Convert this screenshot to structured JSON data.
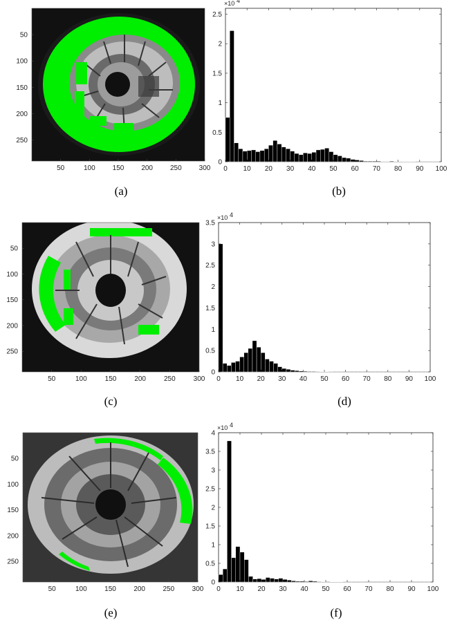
{
  "colors": {
    "highlight": "#00ff00",
    "bar": "#000000",
    "background": "#ffffff"
  },
  "panels": [
    {
      "image": {
        "caption": "(a)",
        "x_ticks": [
          "50",
          "100",
          "150",
          "200",
          "250",
          "300"
        ],
        "y_ticks": [
          "50",
          "100",
          "150",
          "200",
          "250"
        ],
        "xlim": [
          0,
          300
        ],
        "ylim": [
          0,
          290
        ],
        "highlight": "outer-ring"
      },
      "histogram": {
        "caption": "(b)",
        "multiplier": "×10",
        "multiplier_exp": "4",
        "y_ticks": [
          "0",
          "0.5",
          "1",
          "1.5",
          "2",
          "2.5"
        ],
        "x_ticks": [
          "0",
          "10",
          "20",
          "30",
          "40",
          "50",
          "60",
          "70",
          "80",
          "90",
          "100"
        ]
      }
    },
    {
      "image": {
        "caption": "(c)",
        "x_ticks": [
          "50",
          "100",
          "150",
          "200",
          "250",
          "300"
        ],
        "y_ticks": [
          "50",
          "100",
          "150",
          "200",
          "250"
        ],
        "xlim": [
          0,
          300
        ],
        "ylim": [
          0,
          290
        ],
        "highlight": "left-arc"
      },
      "histogram": {
        "caption": "(d)",
        "multiplier": "×10",
        "multiplier_exp": "4",
        "y_ticks": [
          "0",
          "0.5",
          "1",
          "1.5",
          "2",
          "2.5",
          "3",
          "3.5"
        ],
        "x_ticks": [
          "0",
          "10",
          "20",
          "30",
          "40",
          "50",
          "60",
          "70",
          "80",
          "90",
          "100"
        ]
      }
    },
    {
      "image": {
        "caption": "(e)",
        "x_ticks": [
          "50",
          "100",
          "150",
          "200",
          "250",
          "300"
        ],
        "y_ticks": [
          "50",
          "100",
          "150",
          "200",
          "250"
        ],
        "xlim": [
          0,
          300
        ],
        "ylim": [
          0,
          290
        ],
        "highlight": "right-arc"
      },
      "histogram": {
        "caption": "(f)",
        "multiplier": "×10",
        "multiplier_exp": "4",
        "y_ticks": [
          "0",
          "0.5",
          "1",
          "1.5",
          "2",
          "2.5",
          "3",
          "3.5",
          "4"
        ],
        "x_ticks": [
          "0",
          "10",
          "20",
          "30",
          "40",
          "50",
          "60",
          "70",
          "80",
          "90",
          "100"
        ]
      }
    }
  ],
  "chart_data": [
    {
      "type": "bar",
      "bin_width": 2,
      "x": [
        0,
        2,
        4,
        6,
        8,
        10,
        12,
        14,
        16,
        18,
        20,
        22,
        24,
        26,
        28,
        30,
        32,
        34,
        36,
        38,
        40,
        42,
        44,
        46,
        48,
        50,
        52,
        54,
        56,
        58,
        60,
        62,
        64,
        66,
        68,
        70,
        72,
        74,
        76,
        78,
        80,
        82,
        84,
        86,
        88,
        90,
        92,
        94,
        96,
        98
      ],
      "values": [
        0.75,
        2.22,
        0.32,
        0.22,
        0.18,
        0.19,
        0.2,
        0.17,
        0.19,
        0.22,
        0.28,
        0.36,
        0.3,
        0.25,
        0.22,
        0.18,
        0.14,
        0.12,
        0.15,
        0.14,
        0.16,
        0.2,
        0.21,
        0.23,
        0.17,
        0.12,
        0.1,
        0.07,
        0.06,
        0.04,
        0.03,
        0.02,
        0.01,
        0.01,
        0.01,
        0.01,
        0.005,
        0.005,
        0.01,
        0.005,
        0.005,
        0.003,
        0.003,
        0.003,
        0.002,
        0.002,
        0.002,
        0.002,
        0.002,
        0.002
      ],
      "xlim": [
        0,
        100
      ],
      "ylim": [
        0,
        2.6
      ],
      "y_multiplier": "×10^4"
    },
    {
      "type": "bar",
      "bin_width": 2,
      "x": [
        0,
        2,
        4,
        6,
        8,
        10,
        12,
        14,
        16,
        18,
        20,
        22,
        24,
        26,
        28,
        30,
        32,
        34,
        36,
        38,
        40,
        42,
        44,
        46,
        48,
        50,
        52,
        54,
        56,
        58,
        60,
        62,
        64,
        66,
        68,
        70,
        72,
        74,
        76,
        78,
        80,
        82,
        84,
        86,
        88,
        90,
        92,
        94,
        96,
        98
      ],
      "values": [
        3.0,
        0.2,
        0.15,
        0.22,
        0.25,
        0.35,
        0.45,
        0.55,
        0.73,
        0.58,
        0.45,
        0.3,
        0.25,
        0.2,
        0.12,
        0.08,
        0.06,
        0.04,
        0.03,
        0.02,
        0.015,
        0.01,
        0.01,
        0.008,
        0.005,
        0.004,
        0.003,
        0.002,
        0.002,
        0.002,
        0.001,
        0.001,
        0.001,
        0.001,
        0.001,
        0.001,
        0.001,
        0.001,
        0.001,
        0.001,
        0.001,
        0.001,
        0.001,
        0.001,
        0.001,
        0.001,
        0.001,
        0.001,
        0.001,
        0.001
      ],
      "xlim": [
        0,
        100
      ],
      "ylim": [
        0,
        3.5
      ],
      "y_multiplier": "×10^4"
    },
    {
      "type": "bar",
      "bin_width": 2,
      "x": [
        0,
        2,
        4,
        6,
        8,
        10,
        12,
        14,
        16,
        18,
        20,
        22,
        24,
        26,
        28,
        30,
        32,
        34,
        36,
        38,
        40,
        42,
        44,
        46,
        48,
        50,
        52,
        54,
        56,
        58,
        60,
        62,
        64,
        66,
        68,
        70,
        72,
        74,
        76,
        78,
        80,
        82,
        84,
        86,
        88,
        90,
        92,
        94,
        96,
        98
      ],
      "values": [
        0.2,
        0.35,
        3.78,
        0.65,
        0.95,
        0.8,
        0.6,
        0.15,
        0.08,
        0.09,
        0.07,
        0.12,
        0.1,
        0.08,
        0.1,
        0.07,
        0.05,
        0.03,
        0.02,
        0.02,
        0.015,
        0.03,
        0.02,
        0.01,
        0.008,
        0.01,
        0.006,
        0.005,
        0.004,
        0.003,
        0.002,
        0.002,
        0.002,
        0.002,
        0.001,
        0.001,
        0.001,
        0.001,
        0.001,
        0.001,
        0.001,
        0.001,
        0.001,
        0.001,
        0.001,
        0.001,
        0.001,
        0.001,
        0.001,
        0.001
      ],
      "xlim": [
        0,
        100
      ],
      "ylim": [
        0,
        4.0
      ],
      "y_multiplier": "×10^4"
    }
  ]
}
